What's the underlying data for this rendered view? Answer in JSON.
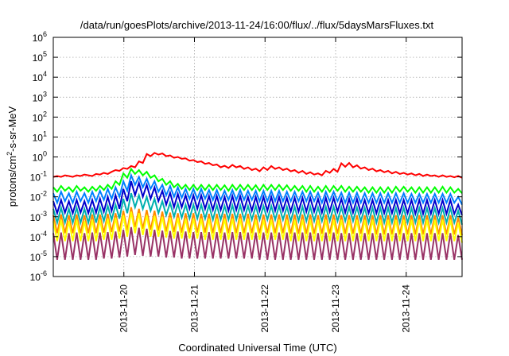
{
  "chart_data": {
    "type": "line",
    "title": "/data/run/goesPlots/archive/2013-11-24/16:00/flux/../flux/5daysMarsFluxes.txt",
    "xlabel": "Coordinated Universal Time (UTC)",
    "ylabel": {
      "prefix": "protons/cm",
      "superscript": "2",
      "suffix": "-s-sr-MeV"
    },
    "y_scale": "log",
    "ylim": [
      1e-06,
      1000000.0
    ],
    "y_ticks": [
      {
        "value": 1e-06,
        "base": "10",
        "exp": "-6"
      },
      {
        "value": 1e-05,
        "base": "10",
        "exp": "-5"
      },
      {
        "value": 0.0001,
        "base": "10",
        "exp": "-4"
      },
      {
        "value": 0.001,
        "base": "10",
        "exp": "-3"
      },
      {
        "value": 0.01,
        "base": "10",
        "exp": "-2"
      },
      {
        "value": 0.1,
        "base": "10",
        "exp": "-1"
      },
      {
        "value": 1,
        "base": "10",
        "exp": "0"
      },
      {
        "value": 10.0,
        "base": "10",
        "exp": "1"
      },
      {
        "value": 100.0,
        "base": "10",
        "exp": "2"
      },
      {
        "value": 1000.0,
        "base": "10",
        "exp": "3"
      },
      {
        "value": 10000.0,
        "base": "10",
        "exp": "4"
      },
      {
        "value": 100000.0,
        "base": "10",
        "exp": "5"
      },
      {
        "value": 1000000.0,
        "base": "10",
        "exp": "6"
      }
    ],
    "x_range": [
      "2013-11-19 00:00",
      "2013-11-24 19:00"
    ],
    "x_ticks": [
      "2013-11-20",
      "2013-11-21",
      "2013-11-22",
      "2013-11-23",
      "2013-11-24"
    ],
    "grid": true,
    "legend": "none",
    "series": [
      {
        "color": "#ff0000",
        "values": [
          0.1,
          0.11,
          0.1,
          0.12,
          0.11,
          0.1,
          0.12,
          0.11,
          0.13,
          0.12,
          0.11,
          0.14,
          0.13,
          0.16,
          0.14,
          0.18,
          0.22,
          0.2,
          0.28,
          0.25,
          0.35,
          0.3,
          0.6,
          0.5,
          1.4,
          1.1,
          1.6,
          1.3,
          1.5,
          1.1,
          1.2,
          0.9,
          1.0,
          0.8,
          0.85,
          0.65,
          0.7,
          0.55,
          0.6,
          0.45,
          0.5,
          0.38,
          0.42,
          0.3,
          0.36,
          0.28,
          0.4,
          0.3,
          0.35,
          0.25,
          0.3,
          0.22,
          0.26,
          0.19,
          0.3,
          0.22,
          0.35,
          0.25,
          0.3,
          0.22,
          0.26,
          0.19,
          0.22,
          0.16,
          0.2,
          0.14,
          0.17,
          0.13,
          0.15,
          0.12,
          0.2,
          0.16,
          0.25,
          0.18,
          0.48,
          0.32,
          0.5,
          0.3,
          0.38,
          0.26,
          0.3,
          0.22,
          0.26,
          0.19,
          0.22,
          0.17,
          0.2,
          0.15,
          0.18,
          0.14,
          0.16,
          0.13,
          0.15,
          0.12,
          0.14,
          0.11,
          0.13,
          0.11,
          0.12,
          0.1,
          0.12,
          0.1,
          0.11,
          0.095,
          0.11,
          0.09
        ]
      },
      {
        "color": "#00ff00",
        "values": [
          0.03,
          0.018,
          0.035,
          0.02,
          0.03,
          0.018,
          0.035,
          0.02,
          0.03,
          0.018,
          0.032,
          0.02,
          0.035,
          0.022,
          0.04,
          0.025,
          0.06,
          0.04,
          0.15,
          0.09,
          0.25,
          0.14,
          0.22,
          0.12,
          0.18,
          0.09,
          0.12,
          0.06,
          0.08,
          0.04,
          0.06,
          0.03,
          0.045,
          0.025,
          0.04,
          0.022,
          0.04,
          0.022,
          0.04,
          0.022,
          0.04,
          0.022,
          0.04,
          0.022,
          0.038,
          0.02,
          0.04,
          0.022,
          0.04,
          0.022,
          0.04,
          0.022,
          0.038,
          0.02,
          0.04,
          0.022,
          0.04,
          0.022,
          0.04,
          0.022,
          0.038,
          0.02,
          0.035,
          0.02,
          0.035,
          0.018,
          0.035,
          0.018,
          0.032,
          0.018,
          0.035,
          0.018,
          0.035,
          0.02,
          0.035,
          0.018,
          0.032,
          0.018,
          0.032,
          0.018,
          0.03,
          0.016,
          0.03,
          0.016,
          0.03,
          0.016,
          0.03,
          0.016,
          0.032,
          0.018,
          0.032,
          0.018,
          0.03,
          0.016,
          0.03,
          0.016,
          0.03,
          0.016,
          0.03,
          0.016,
          0.032,
          0.016,
          0.03,
          0.016,
          0.025,
          0.015
        ]
      },
      {
        "color": "#0080ff",
        "values": [
          0.015,
          0.005,
          0.018,
          0.006,
          0.015,
          0.005,
          0.018,
          0.006,
          0.015,
          0.005,
          0.018,
          0.006,
          0.02,
          0.007,
          0.025,
          0.008,
          0.03,
          0.01,
          0.06,
          0.02,
          0.12,
          0.04,
          0.1,
          0.03,
          0.08,
          0.025,
          0.06,
          0.018,
          0.04,
          0.012,
          0.035,
          0.01,
          0.03,
          0.009,
          0.025,
          0.008,
          0.025,
          0.008,
          0.025,
          0.008,
          0.022,
          0.007,
          0.022,
          0.007,
          0.02,
          0.007,
          0.022,
          0.007,
          0.022,
          0.007,
          0.02,
          0.007,
          0.02,
          0.006,
          0.02,
          0.006,
          0.02,
          0.006,
          0.02,
          0.006,
          0.018,
          0.006,
          0.018,
          0.006,
          0.018,
          0.006,
          0.018,
          0.006,
          0.016,
          0.005,
          0.018,
          0.006,
          0.018,
          0.006,
          0.016,
          0.005,
          0.016,
          0.005,
          0.016,
          0.005,
          0.015,
          0.005,
          0.015,
          0.005,
          0.015,
          0.005,
          0.015,
          0.005,
          0.015,
          0.005,
          0.015,
          0.005,
          0.014,
          0.005,
          0.014,
          0.005,
          0.014,
          0.005,
          0.014,
          0.005,
          0.014,
          0.005,
          0.014,
          0.005,
          0.01,
          0.004
        ]
      },
      {
        "color": "#0000cc",
        "values": [
          0.006,
          0.0015,
          0.007,
          0.0016,
          0.006,
          0.0015,
          0.007,
          0.0016,
          0.006,
          0.0015,
          0.007,
          0.0016,
          0.008,
          0.0018,
          0.01,
          0.002,
          0.012,
          0.0025,
          0.025,
          0.006,
          0.06,
          0.012,
          0.05,
          0.01,
          0.04,
          0.008,
          0.03,
          0.006,
          0.02,
          0.004,
          0.016,
          0.003,
          0.014,
          0.003,
          0.012,
          0.0025,
          0.012,
          0.0025,
          0.012,
          0.0025,
          0.011,
          0.0022,
          0.011,
          0.0022,
          0.01,
          0.002,
          0.011,
          0.0022,
          0.011,
          0.0022,
          0.01,
          0.002,
          0.01,
          0.002,
          0.01,
          0.002,
          0.01,
          0.002,
          0.01,
          0.002,
          0.009,
          0.0018,
          0.009,
          0.0018,
          0.009,
          0.0018,
          0.009,
          0.0018,
          0.008,
          0.0016,
          0.009,
          0.0018,
          0.009,
          0.0018,
          0.008,
          0.0016,
          0.008,
          0.0016,
          0.008,
          0.0016,
          0.007,
          0.0015,
          0.007,
          0.0015,
          0.007,
          0.0015,
          0.007,
          0.0015,
          0.007,
          0.0015,
          0.007,
          0.0015,
          0.007,
          0.0014,
          0.007,
          0.0014,
          0.007,
          0.0014,
          0.007,
          0.0014,
          0.007,
          0.0014,
          0.007,
          0.0014,
          0.004,
          0.0012
        ]
      },
      {
        "color": "#00b0b0",
        "values": [
          0.0025,
          0.0005,
          0.0028,
          0.0005,
          0.0025,
          0.0005,
          0.0028,
          0.0005,
          0.0025,
          0.0005,
          0.0028,
          0.0005,
          0.003,
          0.0006,
          0.0035,
          0.0007,
          0.004,
          0.0008,
          0.008,
          0.0015,
          0.015,
          0.003,
          0.012,
          0.0025,
          0.01,
          0.002,
          0.008,
          0.0015,
          0.006,
          0.0012,
          0.005,
          0.001,
          0.0045,
          0.0009,
          0.004,
          0.0008,
          0.004,
          0.0008,
          0.004,
          0.0008,
          0.0038,
          0.0007,
          0.0038,
          0.0007,
          0.0035,
          0.0007,
          0.0038,
          0.0007,
          0.0038,
          0.0007,
          0.0035,
          0.0007,
          0.0035,
          0.0007,
          0.0035,
          0.0007,
          0.0035,
          0.0007,
          0.0035,
          0.0007,
          0.0032,
          0.0006,
          0.0032,
          0.0006,
          0.0032,
          0.0006,
          0.0032,
          0.0006,
          0.003,
          0.0006,
          0.0032,
          0.0006,
          0.0032,
          0.0006,
          0.003,
          0.0006,
          0.003,
          0.0006,
          0.003,
          0.0006,
          0.0028,
          0.0005,
          0.0028,
          0.0005,
          0.0028,
          0.0005,
          0.0028,
          0.0005,
          0.0028,
          0.0005,
          0.0028,
          0.0005,
          0.0027,
          0.0005,
          0.0027,
          0.0005,
          0.0027,
          0.0005,
          0.0027,
          0.0005,
          0.0027,
          0.0005,
          0.0027,
          0.0005,
          0.002,
          0.0004
        ]
      },
      {
        "color": "#ff8c00",
        "values": [
          0.0012,
          0.00015,
          0.0013,
          0.00015,
          0.0012,
          0.00015,
          0.0013,
          0.00015,
          0.0012,
          0.00015,
          0.0013,
          0.00015,
          0.0013,
          0.00016,
          0.0014,
          0.00017,
          0.0015,
          0.00018,
          0.002,
          0.0002,
          0.003,
          0.0003,
          0.0025,
          0.00025,
          0.0022,
          0.00022,
          0.002,
          0.0002,
          0.0018,
          0.00018,
          0.0016,
          0.00017,
          0.0015,
          0.00016,
          0.0015,
          0.00016,
          0.0015,
          0.00016,
          0.0014,
          0.00016,
          0.0014,
          0.00015,
          0.0014,
          0.00015,
          0.0014,
          0.00015,
          0.0014,
          0.00015,
          0.0014,
          0.00015,
          0.0014,
          0.00015,
          0.0013,
          0.00015,
          0.0013,
          0.00015,
          0.0013,
          0.00015,
          0.0013,
          0.00015,
          0.0013,
          0.00014,
          0.0013,
          0.00014,
          0.0013,
          0.00014,
          0.0013,
          0.00014,
          0.0012,
          0.00014,
          0.0013,
          0.00014,
          0.0013,
          0.00014,
          0.0012,
          0.00014,
          0.0012,
          0.00014,
          0.0012,
          0.00014,
          0.0012,
          0.00013,
          0.0012,
          0.00013,
          0.0012,
          0.00013,
          0.0012,
          0.00013,
          0.0012,
          0.00013,
          0.0012,
          0.00013,
          0.0012,
          0.00013,
          0.0012,
          0.00013,
          0.0012,
          0.00013,
          0.0012,
          0.00013,
          0.0012,
          0.00013,
          0.0012,
          0.00013,
          0.0009,
          0.00012
        ]
      },
      {
        "color": "#ffff00",
        "values": [
          0.0006,
          6e-05,
          0.0007,
          6e-05,
          0.0006,
          6e-05,
          0.0007,
          6e-05,
          0.0006,
          6e-05,
          0.0007,
          6e-05,
          0.0007,
          7e-05,
          0.0008,
          7e-05,
          0.0009,
          8e-05,
          0.0012,
          0.0001,
          0.0018,
          0.00015,
          0.0015,
          0.00012,
          0.0012,
          0.0001,
          0.0011,
          0.0001,
          0.001,
          9e-05,
          0.0009,
          8e-05,
          0.0009,
          8e-05,
          0.0008,
          8e-05,
          0.0008,
          8e-05,
          0.0008,
          7e-05,
          0.0008,
          7e-05,
          0.0008,
          7e-05,
          0.0008,
          7e-05,
          0.0008,
          7e-05,
          0.0008,
          7e-05,
          0.0008,
          7e-05,
          0.0007,
          7e-05,
          0.0007,
          7e-05,
          0.0007,
          7e-05,
          0.0007,
          7e-05,
          0.0007,
          6e-05,
          0.0007,
          6e-05,
          0.0007,
          6e-05,
          0.0007,
          6e-05,
          0.0007,
          6e-05,
          0.0007,
          6e-05,
          0.0007,
          6e-05,
          0.0007,
          6e-05,
          0.0007,
          6e-05,
          0.0007,
          6e-05,
          0.0007,
          6e-05,
          0.0007,
          6e-05,
          0.0007,
          6e-05,
          0.0007,
          6e-05,
          0.0007,
          6e-05,
          0.0007,
          6e-05,
          0.0007,
          6e-05,
          0.0007,
          6e-05,
          0.0007,
          6e-05,
          0.0007,
          6e-05,
          0.0007,
          6e-05,
          0.0007,
          6e-05,
          0.0005,
          5e-05
        ]
      },
      {
        "color": "#993366",
        "values": [
          0.00015,
          7e-06,
          0.00016,
          7e-06,
          0.00015,
          7e-06,
          0.00016,
          7e-06,
          0.00015,
          7e-06,
          0.00016,
          7e-06,
          0.00016,
          8e-06,
          0.00017,
          8e-06,
          0.00018,
          9e-06,
          0.00022,
          1e-05,
          0.0003,
          1.2e-05,
          0.00028,
          1.1e-05,
          0.00025,
          1e-05,
          0.00022,
          1e-05,
          0.0002,
          9e-06,
          0.00019,
          9e-06,
          0.00018,
          8e-06,
          0.00018,
          8e-06,
          0.00017,
          8e-06,
          0.00017,
          8e-06,
          0.00017,
          8e-06,
          0.00017,
          8e-06,
          0.00016,
          8e-06,
          0.00017,
          8e-06,
          0.00017,
          8e-06,
          0.00016,
          8e-06,
          0.00016,
          7e-06,
          0.00016,
          7e-06,
          0.00016,
          7e-06,
          0.00016,
          7e-06,
          0.00016,
          7e-06,
          0.00016,
          7e-06,
          0.00016,
          7e-06,
          0.00016,
          7e-06,
          0.00015,
          7e-06,
          0.00016,
          7e-06,
          0.00016,
          7e-06,
          0.00015,
          7e-06,
          0.00015,
          7e-06,
          0.00015,
          7e-06,
          0.00015,
          7e-06,
          0.00015,
          7e-06,
          0.00015,
          7e-06,
          0.00015,
          7e-06,
          0.00015,
          7e-06,
          0.00015,
          7e-06,
          0.00015,
          7e-06,
          0.00015,
          7e-06,
          0.00015,
          7e-06,
          0.00015,
          7e-06,
          0.00015,
          7e-06,
          0.00015,
          7e-06,
          0.00012,
          7e-06
        ]
      }
    ]
  }
}
